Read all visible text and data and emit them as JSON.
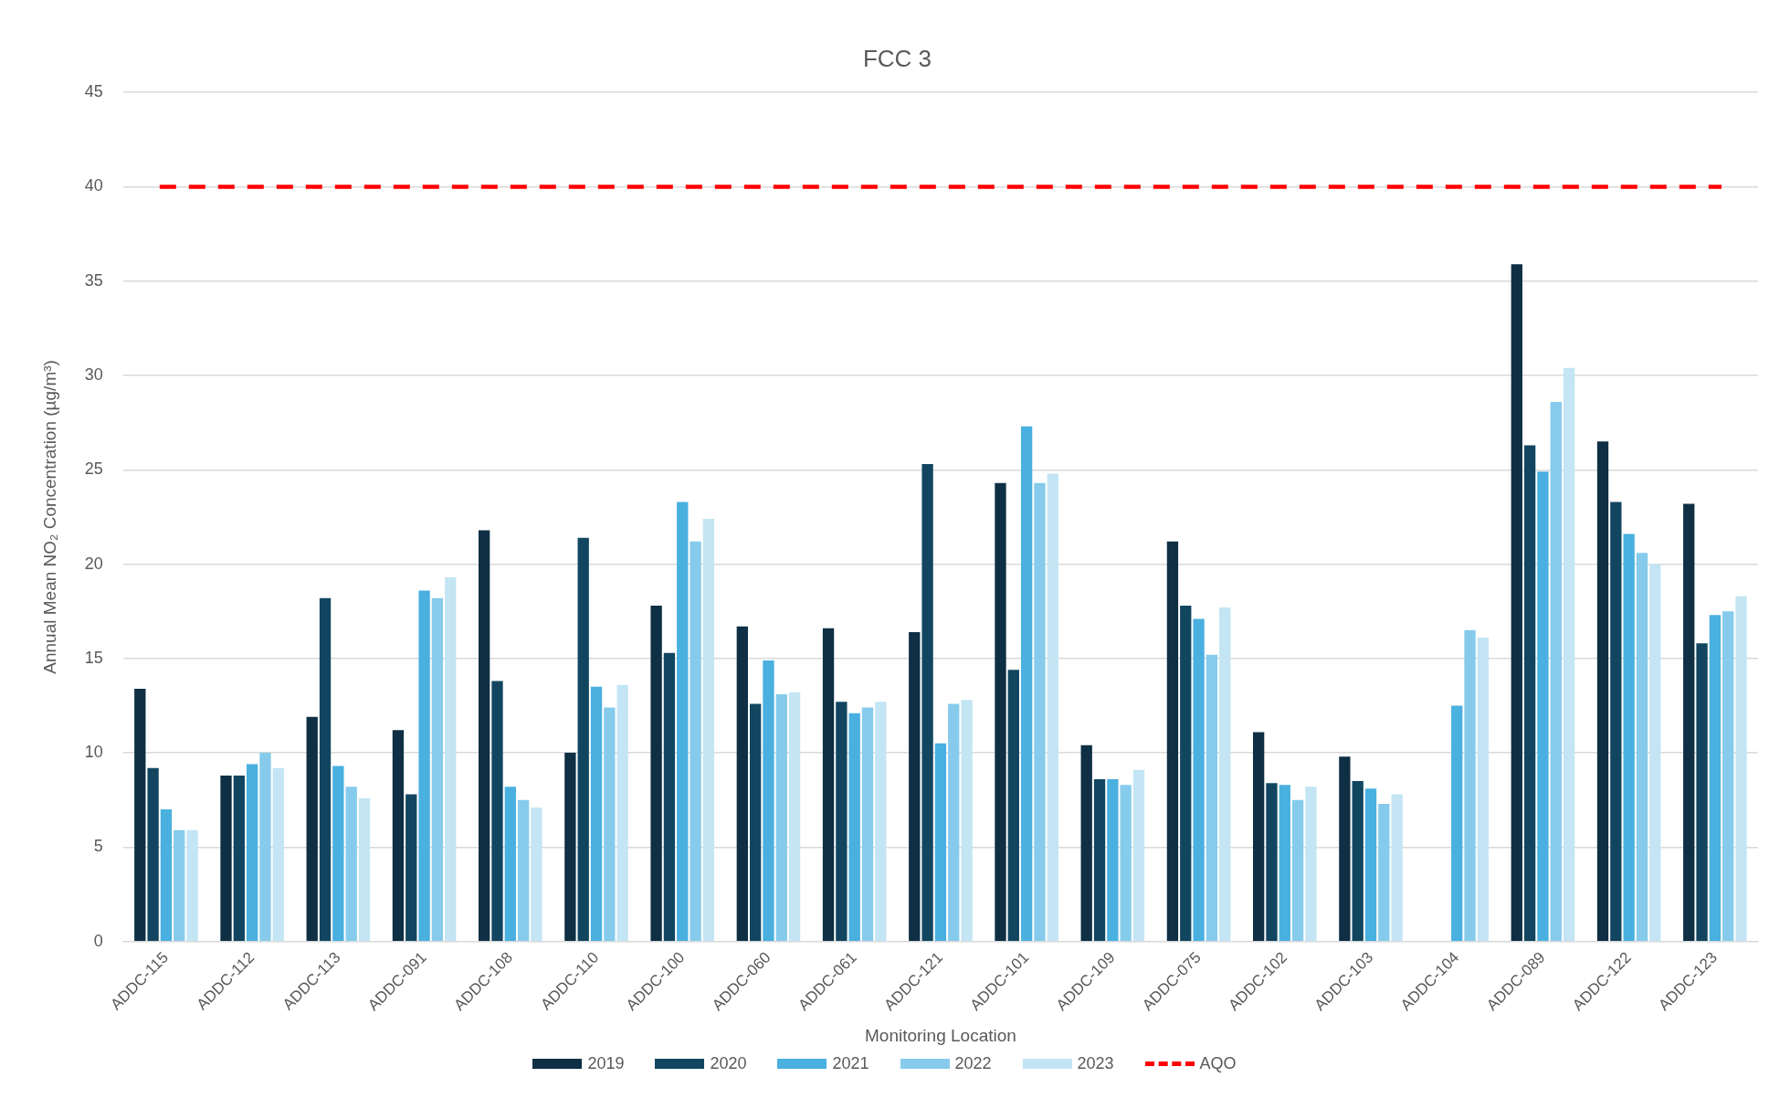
{
  "chart_data": {
    "type": "bar",
    "title": "FCC 3",
    "xlabel": "Monitoring Location",
    "ylabel": "Annual Mean NO₂ Concentration (µg/m³)",
    "categories": [
      "ADDC-115",
      "ADDC-112",
      "ADDC-113",
      "ADDC-091",
      "ADDC-108",
      "ADDC-110",
      "ADDC-100",
      "ADDC-060",
      "ADDC-061",
      "ADDC-121",
      "ADDC-101",
      "ADDC-109",
      "ADDC-075",
      "ADDC-102",
      "ADDC-103",
      "ADDC-104",
      "ADDC-089",
      "ADDC-122",
      "ADDC-123"
    ],
    "series": [
      {
        "name": "2019",
        "color": "#0e2f44",
        "values": [
          13.4,
          8.8,
          11.9,
          11.2,
          21.8,
          10.0,
          17.8,
          16.7,
          16.6,
          16.4,
          24.3,
          10.4,
          21.2,
          11.1,
          9.8,
          null,
          35.9,
          26.5,
          23.2
        ]
      },
      {
        "name": "2020",
        "color": "#124660",
        "values": [
          9.2,
          8.8,
          18.2,
          7.8,
          13.8,
          21.4,
          15.3,
          12.6,
          12.7,
          25.3,
          14.4,
          8.6,
          17.8,
          8.4,
          8.5,
          null,
          26.3,
          23.3,
          15.8
        ]
      },
      {
        "name": "2021",
        "color": "#49b0e0",
        "values": [
          7.0,
          9.4,
          9.3,
          18.6,
          8.2,
          13.5,
          23.3,
          14.9,
          12.1,
          10.5,
          27.3,
          8.6,
          17.1,
          8.3,
          8.1,
          12.5,
          24.9,
          21.6,
          17.3
        ]
      },
      {
        "name": "2022",
        "color": "#86cbeb",
        "values": [
          5.9,
          10.0,
          8.2,
          18.2,
          7.5,
          12.4,
          21.2,
          13.1,
          12.4,
          12.6,
          24.3,
          8.3,
          15.2,
          7.5,
          7.3,
          16.5,
          28.6,
          20.6,
          17.5
        ]
      },
      {
        "name": "2023",
        "color": "#c3e5f4",
        "values": [
          5.9,
          9.2,
          7.6,
          19.3,
          7.1,
          13.6,
          22.4,
          13.2,
          12.7,
          12.8,
          24.8,
          9.1,
          17.7,
          8.2,
          7.8,
          16.1,
          30.4,
          20.0,
          18.3
        ]
      }
    ],
    "ref_lines": [
      {
        "axis": "y",
        "value": 40,
        "label": "AQO",
        "color": "#ff0000",
        "line_style": "dashed"
      }
    ],
    "ylim": [
      0,
      45
    ],
    "yticks": [
      0,
      5,
      10,
      15,
      20,
      25,
      30,
      35,
      40,
      45
    ],
    "grid": "y",
    "legend": "bottom"
  }
}
